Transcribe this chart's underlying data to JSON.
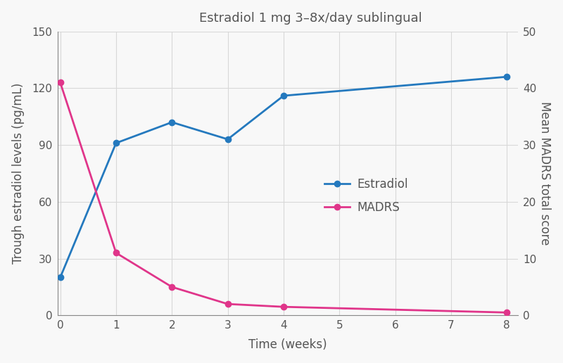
{
  "title": "Estradiol 1 mg 3–8x/day sublingual",
  "xlabel": "Time (weeks)",
  "ylabel_left": "Trough estradiol levels (pg/mL)",
  "ylabel_right": "Mean MADRS total score",
  "x_ticks": [
    0,
    1,
    2,
    3,
    4,
    5,
    6,
    7,
    8
  ],
  "estradiol_x": [
    0,
    1,
    2,
    3,
    4,
    8
  ],
  "estradiol_y": [
    20,
    91,
    102,
    93,
    116,
    126
  ],
  "madrs_x": [
    0,
    1,
    2,
    3,
    4,
    8
  ],
  "madrs_y": [
    41,
    11,
    5,
    2,
    1.5,
    0.5
  ],
  "estradiol_color": "#2479be",
  "madrs_color": "#e0358a",
  "ylim_left": [
    0,
    150
  ],
  "ylim_right": [
    0,
    50
  ],
  "yticks_left": [
    0,
    30,
    60,
    90,
    120,
    150
  ],
  "yticks_right": [
    0,
    10,
    20,
    30,
    40,
    50
  ],
  "xlim": [
    -0.05,
    8.2
  ],
  "background_color": "#f8f8f8",
  "plot_bg_color": "#f8f8f8",
  "grid_color": "#d8d8d8",
  "legend_labels": [
    "Estradiol",
    "MADRS"
  ],
  "title_fontsize": 13,
  "axis_label_fontsize": 12,
  "tick_fontsize": 11,
  "legend_fontsize": 12,
  "spine_color": "#888888",
  "text_color": "#555555"
}
